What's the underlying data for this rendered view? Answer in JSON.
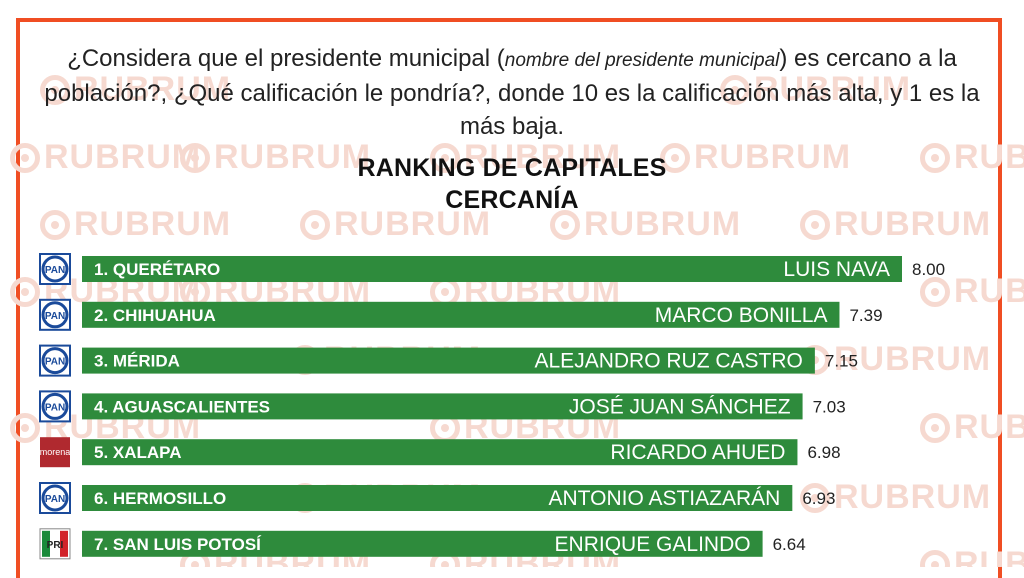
{
  "question": {
    "part1": "¿Considera que el presidente municipal (",
    "italic": "nombre del presidente municipal",
    "part2": ") es cercano a la población?, ¿Qué calificación le pondría?, donde 10 es la calificación más alta, y 1 es la más baja."
  },
  "watermark_text": "RUBRUM",
  "colors": {
    "bar": "#2e8b3c",
    "frame": "#f04e23",
    "pan": "#1a4a9a",
    "morena": "#b0292f",
    "pri_green": "#1a8a3a",
    "pri_red": "#d2232a"
  },
  "chart_data": {
    "type": "bar",
    "orientation": "horizontal",
    "title": "RANKING DE CAPITALES",
    "subtitle": "CERCANÍA",
    "categories": [
      "1. QUERÉTARO",
      "2. CHIHUAHUA",
      "3. MÉRIDA",
      "4. AGUASCALIENTES",
      "5. XALAPA",
      "6. HERMOSILLO",
      "7. SAN LUIS POTOSÍ"
    ],
    "names": [
      "LUIS NAVA",
      "MARCO BONILLA",
      "ALEJANDRO RUZ CASTRO",
      "JOSÉ JUAN SÁNCHEZ",
      "RICARDO AHUED",
      "ANTONIO ASTIAZARÁN",
      "ENRIQUE GALINDO"
    ],
    "parties": [
      "PAN",
      "PAN",
      "PAN",
      "PAN",
      "morena",
      "PAN",
      "PRI"
    ],
    "value_labels": [
      "8.00",
      "7.39",
      "7.15",
      "7.03",
      "6.98",
      "6.93",
      "6.64"
    ],
    "values": [
      8.0,
      7.39,
      7.15,
      7.03,
      6.98,
      6.93,
      6.64
    ]
  }
}
